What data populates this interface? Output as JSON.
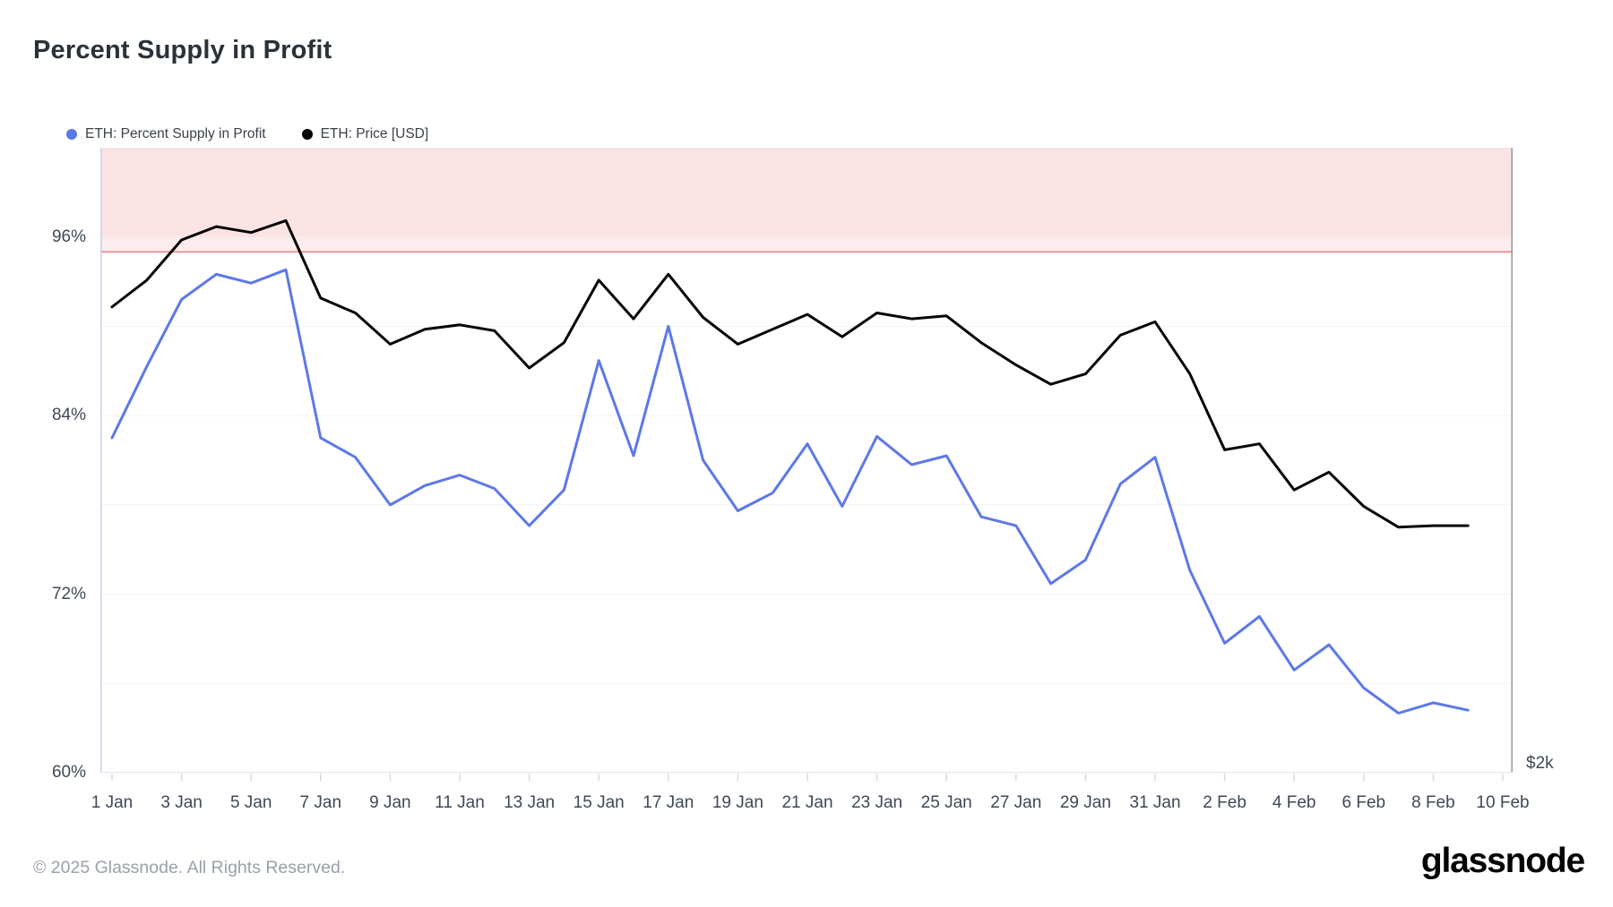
{
  "page": {
    "title": "Percent Supply in Profit",
    "footer_copyright": "© 2025 Glassnode. All Rights Reserved.",
    "brand_logo_text": "glassnode"
  },
  "legend": [
    {
      "label": "ETH: Percent Supply in Profit",
      "color": "#5d78e8"
    },
    {
      "label": "ETH: Price [USD]",
      "color": "#050505"
    }
  ],
  "colors": {
    "blue_series": "#5d78e8",
    "black_series": "#050505",
    "band_upper_pink": "#fbe3e4",
    "band_lower_pink": "#fdeced",
    "band_edge_red": "#ec8585",
    "gridline": "#f1f2f5",
    "left_axis_line": "#c7d2f0",
    "right_axis_line": "#989da8",
    "bottom_axis_line": "#e2e5ea",
    "tick_mark": "#d6d8dd",
    "axis_text": "#3e4856",
    "title_text": "#2b3139",
    "footer_text": "#9aa1ab"
  },
  "chart_data": {
    "type": "line",
    "title": "Percent Supply in Profit",
    "x": [
      "1 Jan",
      "2 Jan",
      "3 Jan",
      "4 Jan",
      "5 Jan",
      "6 Jan",
      "7 Jan",
      "8 Jan",
      "9 Jan",
      "10 Jan",
      "11 Jan",
      "12 Jan",
      "13 Jan",
      "14 Jan",
      "15 Jan",
      "16 Jan",
      "17 Jan",
      "18 Jan",
      "19 Jan",
      "20 Jan",
      "21 Jan",
      "22 Jan",
      "23 Jan",
      "24 Jan",
      "25 Jan",
      "26 Jan",
      "27 Jan",
      "28 Jan",
      "29 Jan",
      "30 Jan",
      "31 Jan",
      "1 Feb",
      "2 Feb",
      "3 Feb",
      "4 Feb",
      "5 Feb",
      "6 Feb",
      "7 Feb",
      "8 Feb",
      "9 Feb"
    ],
    "series": [
      {
        "name": "ETH: Percent Supply in Profit",
        "axis": "left-percent",
        "color": "#5d78e8",
        "values": [
          82.5,
          87.3,
          91.8,
          93.5,
          92.9,
          93.8,
          82.5,
          81.2,
          78.0,
          79.3,
          80.0,
          79.1,
          76.6,
          79.0,
          87.7,
          81.3,
          90.0,
          81.0,
          77.6,
          78.8,
          82.1,
          77.9,
          82.6,
          80.7,
          81.3,
          77.2,
          76.6,
          72.7,
          74.3,
          79.4,
          81.2,
          73.6,
          68.7,
          70.5,
          66.9,
          68.6,
          65.7,
          64.0,
          64.7,
          64.2
        ]
      },
      {
        "name": "ETH: Price [USD]",
        "axis": "right-price-usd (only the $2k gridline label is visible; values below are the line's plotted position expressed on the left percent axis)",
        "color": "#050505",
        "values_pct_axis": [
          91.3,
          93.1,
          95.8,
          96.7,
          96.3,
          97.1,
          91.9,
          90.9,
          88.8,
          89.8,
          90.1,
          89.7,
          87.2,
          88.9,
          93.1,
          90.5,
          93.5,
          90.6,
          88.8,
          89.8,
          90.8,
          89.3,
          90.9,
          90.5,
          90.7,
          88.9,
          87.4,
          86.1,
          86.8,
          89.4,
          90.3,
          86.8,
          81.7,
          82.1,
          79.0,
          80.2,
          77.9,
          76.5,
          76.6,
          76.6
        ]
      }
    ],
    "y_axis": {
      "side": "left",
      "range": [
        60,
        102
      ],
      "tick_values": [
        96,
        84,
        72,
        60
      ],
      "tick_labels": [
        "96%",
        "84%",
        "72%",
        "60%"
      ],
      "minor_gridline_values": [
        90,
        84,
        78,
        72,
        66
      ],
      "grid": "on"
    },
    "x_axis": {
      "tick_day_indices": [
        0,
        2,
        4,
        6,
        8,
        10,
        12,
        14,
        16,
        18,
        20,
        22,
        24,
        26,
        28,
        30,
        32,
        34,
        36,
        38,
        40
      ],
      "tick_labels": [
        "1 Jan",
        "3 Jan",
        "5 Jan",
        "7 Jan",
        "9 Jan",
        "11 Jan",
        "13 Jan",
        "15 Jan",
        "17 Jan",
        "19 Jan",
        "21 Jan",
        "23 Jan",
        "25 Jan",
        "27 Jan",
        "29 Jan",
        "31 Jan",
        "2 Feb",
        "4 Feb",
        "6 Feb",
        "8 Feb",
        "10 Feb"
      ]
    },
    "right_axis_label": "$2k",
    "highlight_band": {
      "from_pct": 95,
      "to_pct": 102,
      "edge_line_pct": 95
    },
    "legend_position": "top-left"
  }
}
